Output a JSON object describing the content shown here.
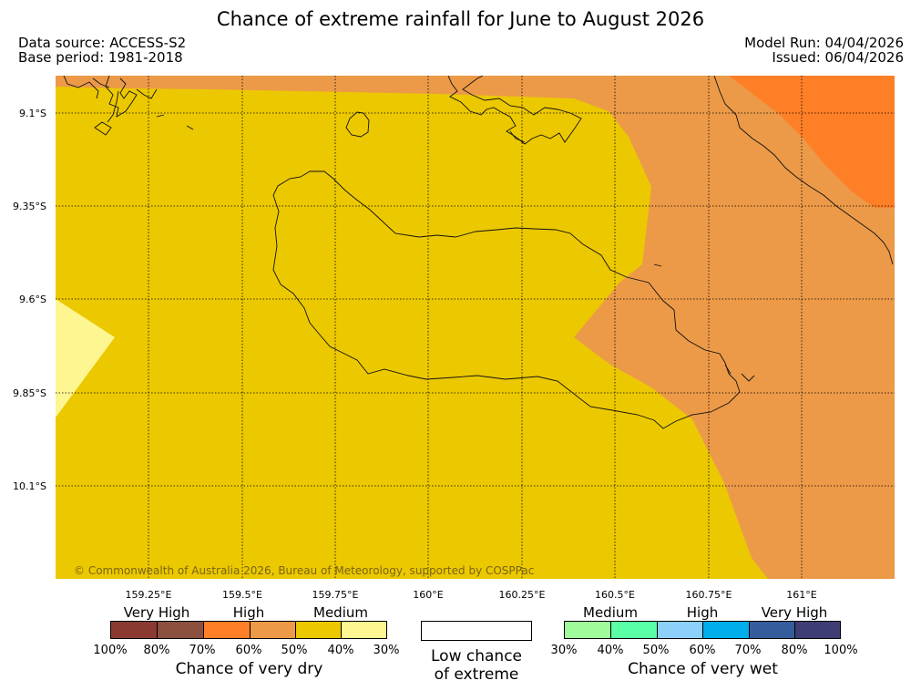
{
  "title": "Chance of extreme rainfall for June to August 2026",
  "meta": {
    "data_source": "Data source: ACCESS-S2",
    "base_period": "Base period: 1981-2018",
    "model_run": "Model Run: 04/04/2026",
    "issued": "Issued: 06/04/2026"
  },
  "map": {
    "lat_labels": [
      "9.1°S",
      "9.35°S",
      "9.6°S",
      "9.85°S",
      "10.1°S"
    ],
    "lon_labels": [
      "159.25°E",
      "159.5°E",
      "159.75°E",
      "160°E",
      "160.25°E",
      "160.5°E",
      "160.75°E",
      "161°E"
    ],
    "copyright": "© Commonwealth of Australia 2026, Bureau of Meteorology, supported by COSPPac"
  },
  "colors": {
    "very_dry_80_100": "#8b3a32",
    "very_dry_70_80": "#8b4f3d",
    "very_dry_60_70": "#ff7f27",
    "very_dry_50_60": "#ec9a48",
    "very_dry_40_50": "#ecc800",
    "very_dry_30_40": "#fef691",
    "wet_30_40": "#a0fb9b",
    "wet_40_50": "#5affa6",
    "wet_50_60": "#8cd0fb",
    "wet_60_70": "#00aeeb",
    "wet_70_80": "#355d9c",
    "wet_80_100": "#3e3d76"
  },
  "legend": {
    "dry": {
      "headers": [
        "Very High",
        "High",
        "Medium"
      ],
      "ticks": [
        "100%",
        "80%",
        "70%",
        "60%",
        "50%",
        "40%",
        "30%"
      ],
      "title": "Chance of very dry"
    },
    "low": {
      "line1": "Low chance",
      "line2": "of extreme"
    },
    "wet": {
      "headers": [
        "Medium",
        "High",
        "Very High"
      ],
      "ticks": [
        "30%",
        "40%",
        "50%",
        "60%",
        "70%",
        "80%",
        "100%"
      ],
      "title": "Chance of very wet"
    }
  }
}
